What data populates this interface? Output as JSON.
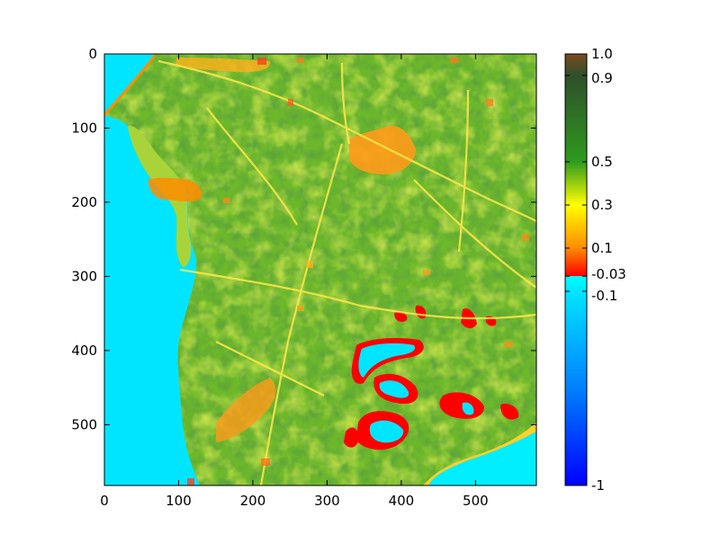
{
  "chart_data": {
    "type": "heatmap",
    "title": "",
    "xlabel": "",
    "ylabel": "",
    "xlim": [
      0,
      582
    ],
    "ylim": [
      582,
      0
    ],
    "x_ticks": [
      "0",
      "100",
      "200",
      "300",
      "400",
      "500"
    ],
    "y_ticks": [
      "0",
      "100",
      "200",
      "300",
      "400",
      "500"
    ],
    "grid": false,
    "colorbar": {
      "range": [
        -1,
        1
      ],
      "ticks": [
        "-1",
        "-0.1",
        "-0.03",
        "0.1",
        "0.3",
        "0.5",
        "0.9",
        "1.0"
      ],
      "stops": [
        {
          "value": -1.0,
          "color": "#0000ff"
        },
        {
          "value": -0.55,
          "color": "#0080ff"
        },
        {
          "value": -0.1,
          "color": "#00e5ff"
        },
        {
          "value": -0.03,
          "color": "#00ffff"
        },
        {
          "value": -0.0299,
          "color": "#ff0000"
        },
        {
          "value": 0.1,
          "color": "#ff8c00"
        },
        {
          "value": 0.3,
          "color": "#ffff00"
        },
        {
          "value": 0.5,
          "color": "#2e9a1e"
        },
        {
          "value": 0.9,
          "color": "#2f4f2a"
        },
        {
          "value": 1.0,
          "color": "#7a4a1e"
        }
      ]
    },
    "regions": [
      {
        "label": "sea (west)",
        "value": -0.08,
        "color": "#00e5ff"
      },
      {
        "label": "water bodies (south-east)",
        "value": -0.06,
        "color": "#00eeff"
      },
      {
        "label": "vegetated fields",
        "value": 0.42,
        "color": "#6db82a"
      },
      {
        "label": "dense vegetation",
        "value": 0.5,
        "color": "#2e9a1e"
      },
      {
        "label": "built-up / bare soil",
        "value": 0.1,
        "color": "#ff8c00"
      },
      {
        "label": "wetland edges",
        "value": -0.02,
        "color": "#ff0000"
      }
    ]
  }
}
